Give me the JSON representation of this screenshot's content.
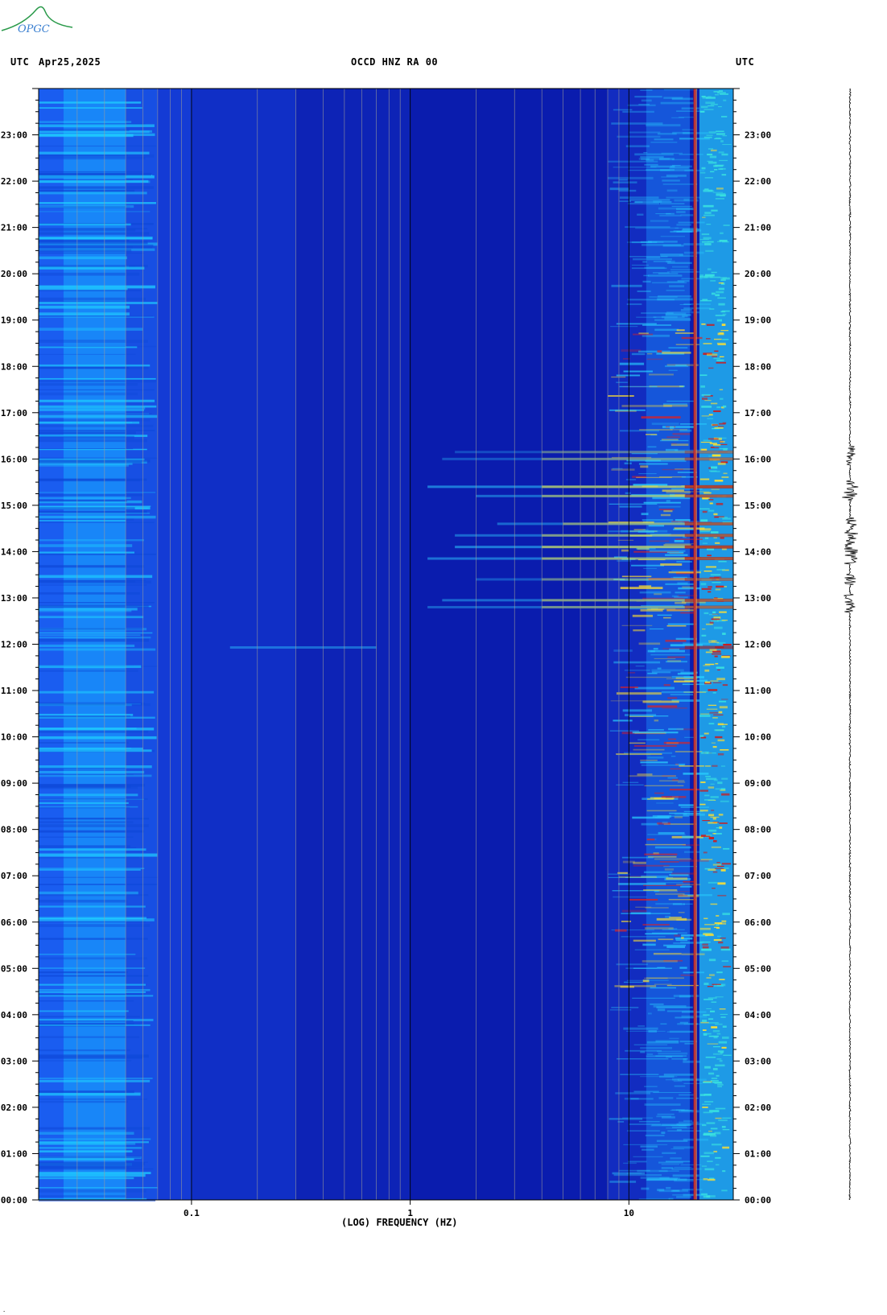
{
  "header": {
    "left_label": "UTC",
    "date": "Apr25,2025",
    "station": "OCCD HNZ RA 00",
    "right_label": "UTC"
  },
  "logo": {
    "text": "OPGC",
    "color": "#2a9a4a",
    "text_color": "#3a7fd0"
  },
  "chart_data": {
    "type": "heatmap",
    "xlabel": "(LOG) FREQUENCY (HZ)",
    "x_scale": "log",
    "x_ticks": [
      {
        "value": 0.1,
        "label": "0.1"
      },
      {
        "value": 1,
        "label": "1"
      },
      {
        "value": 10,
        "label": "10"
      }
    ],
    "xlim": [
      0.02,
      30
    ],
    "y_ticks": [
      "00:00",
      "01:00",
      "02:00",
      "03:00",
      "04:00",
      "05:00",
      "06:00",
      "07:00",
      "08:00",
      "09:00",
      "10:00",
      "11:00",
      "12:00",
      "13:00",
      "14:00",
      "15:00",
      "16:00",
      "17:00",
      "18:00",
      "19:00",
      "20:00",
      "21:00",
      "22:00",
      "23:00"
    ],
    "ylim_hours": [
      0,
      24
    ],
    "colors": {
      "background": "#0a1cae",
      "low_band": "#1a5df0",
      "very_low_band": "#18a8ff",
      "hot": "#ffe030",
      "red_line": "#c81010"
    },
    "persistent_line_hz": 20,
    "events": [
      {
        "hour": 11.93,
        "fmin": 0.15,
        "fmax": 0.7,
        "strength": 0.8
      },
      {
        "hour": 12.8,
        "fmin": 1.2,
        "fmax": 30,
        "strength": 0.7
      },
      {
        "hour": 12.95,
        "fmin": 1.4,
        "fmax": 30,
        "strength": 0.8
      },
      {
        "hour": 13.4,
        "fmin": 2,
        "fmax": 30,
        "strength": 0.6
      },
      {
        "hour": 13.85,
        "fmin": 1.2,
        "fmax": 30,
        "strength": 0.9
      },
      {
        "hour": 14.1,
        "fmin": 1.6,
        "fmax": 30,
        "strength": 1.0
      },
      {
        "hour": 14.35,
        "fmin": 1.6,
        "fmax": 30,
        "strength": 0.8
      },
      {
        "hour": 14.6,
        "fmin": 2.5,
        "fmax": 30,
        "strength": 0.8
      },
      {
        "hour": 15.2,
        "fmin": 2,
        "fmax": 30,
        "strength": 0.8
      },
      {
        "hour": 15.4,
        "fmin": 1.2,
        "fmax": 30,
        "strength": 1.0
      },
      {
        "hour": 16.0,
        "fmin": 1.4,
        "fmax": 30,
        "strength": 0.6
      },
      {
        "hour": 16.15,
        "fmin": 1.6,
        "fmax": 30,
        "strength": 0.5
      }
    ]
  }
}
